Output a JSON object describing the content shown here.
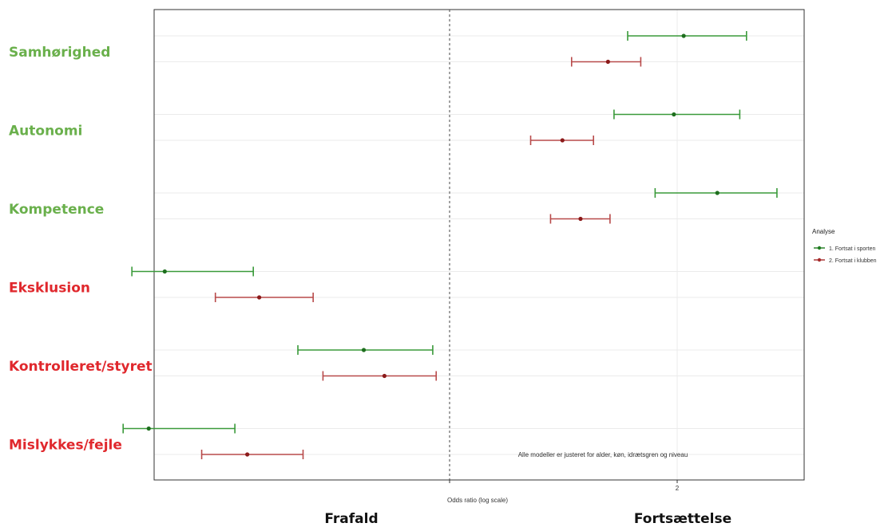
{
  "chart_data": {
    "type": "forest",
    "xlabel": "Odds ratio (log scale)",
    "x_scale": "log",
    "reference_line": 1,
    "x_ticks": [
      1,
      2
    ],
    "annotation": "Alle modeller er justeret for alder, køn, idrætsgren og niveau",
    "left_side_label": "Frafald",
    "right_side_label": "Fortsættelse",
    "legend": {
      "title": "Analyse",
      "placement": "right",
      "entries": [
        {
          "name": "1. Fortsat i sporten",
          "color": "#1e7b1e"
        },
        {
          "name": "2. Fortsat i klubben",
          "color": "#a52a2a"
        }
      ]
    },
    "category_colors": {
      "positive": "#6ab04c",
      "negative": "#e0282d"
    },
    "categories": [
      {
        "label": "Samhørighed",
        "group": "positive"
      },
      {
        "label": "Autonomi",
        "group": "positive"
      },
      {
        "label": "Kompetence",
        "group": "positive"
      },
      {
        "label": "Eksklusion",
        "group": "negative"
      },
      {
        "label": "Kontrolleret/styret",
        "group": "negative"
      },
      {
        "label": "Mislykkes/fejle",
        "group": "negative"
      }
    ],
    "series": [
      {
        "name": "1. Fortsat i sporten",
        "point_color": "#1e6e1e",
        "whisker_color": "#3a9a3a",
        "estimates": [
          2.04,
          1.98,
          2.26,
          0.42,
          0.77,
          0.4
        ],
        "lower": [
          1.72,
          1.65,
          1.87,
          0.38,
          0.63,
          0.37
        ],
        "upper": [
          2.47,
          2.42,
          2.71,
          0.55,
          0.95,
          0.52
        ]
      },
      {
        "name": "2. Fortsat i klubben",
        "point_color": "#8b1a1a",
        "whisker_color": "#b84a4a",
        "estimates": [
          1.62,
          1.41,
          1.49,
          0.56,
          0.82,
          0.54
        ],
        "lower": [
          1.45,
          1.28,
          1.36,
          0.49,
          0.68,
          0.47
        ],
        "upper": [
          1.79,
          1.55,
          1.63,
          0.66,
          0.96,
          0.64
        ]
      }
    ]
  }
}
